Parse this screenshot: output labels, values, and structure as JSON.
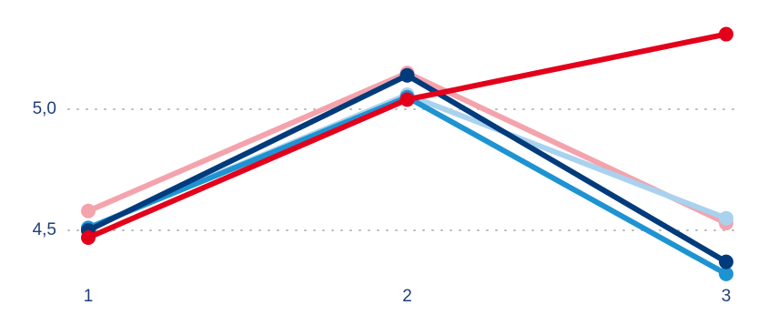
{
  "chart_data": {
    "type": "line",
    "x": [
      1,
      2,
      3
    ],
    "xlim": [
      1,
      3
    ],
    "xticks": [
      1,
      2,
      3
    ],
    "ylim": [
      4.32,
      5.45
    ],
    "yticks": [
      {
        "value": 4.5,
        "label": "4,5"
      },
      {
        "value": 5,
        "label": "5,0"
      }
    ],
    "grid": true,
    "series": [
      {
        "color": "#f4a3ad",
        "values": [
          4.58,
          5.15,
          4.53
        ]
      },
      {
        "color": "#a9d2ee",
        "values": [
          4.51,
          5.06,
          4.55
        ]
      },
      {
        "color": "#1e93d2",
        "values": [
          4.51,
          5.05,
          4.32
        ]
      },
      {
        "color": "#003b7c",
        "values": [
          4.5,
          5.14,
          4.37
        ]
      },
      {
        "color": "#e3001b",
        "values": [
          4.47,
          5.04,
          5.31
        ]
      }
    ]
  }
}
